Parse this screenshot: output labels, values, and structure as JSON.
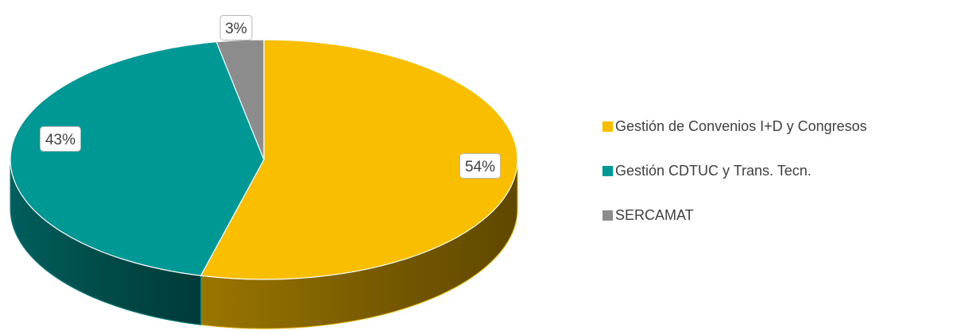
{
  "chart_data": {
    "type": "pie",
    "title": "",
    "legend_position": "right",
    "slices": [
      {
        "label": "Gestión de Convenios I+D y Congresos",
        "value": 54,
        "value_label": "54%",
        "color": "#F9BE00"
      },
      {
        "label": "Gestión CDTUC y Trans. Tecn.",
        "value": 43,
        "value_label": "43%",
        "color": "#009894"
      },
      {
        "label": "SERCAMAT",
        "value": 3,
        "value_label": "3%",
        "color": "#8C8C8C"
      }
    ]
  }
}
